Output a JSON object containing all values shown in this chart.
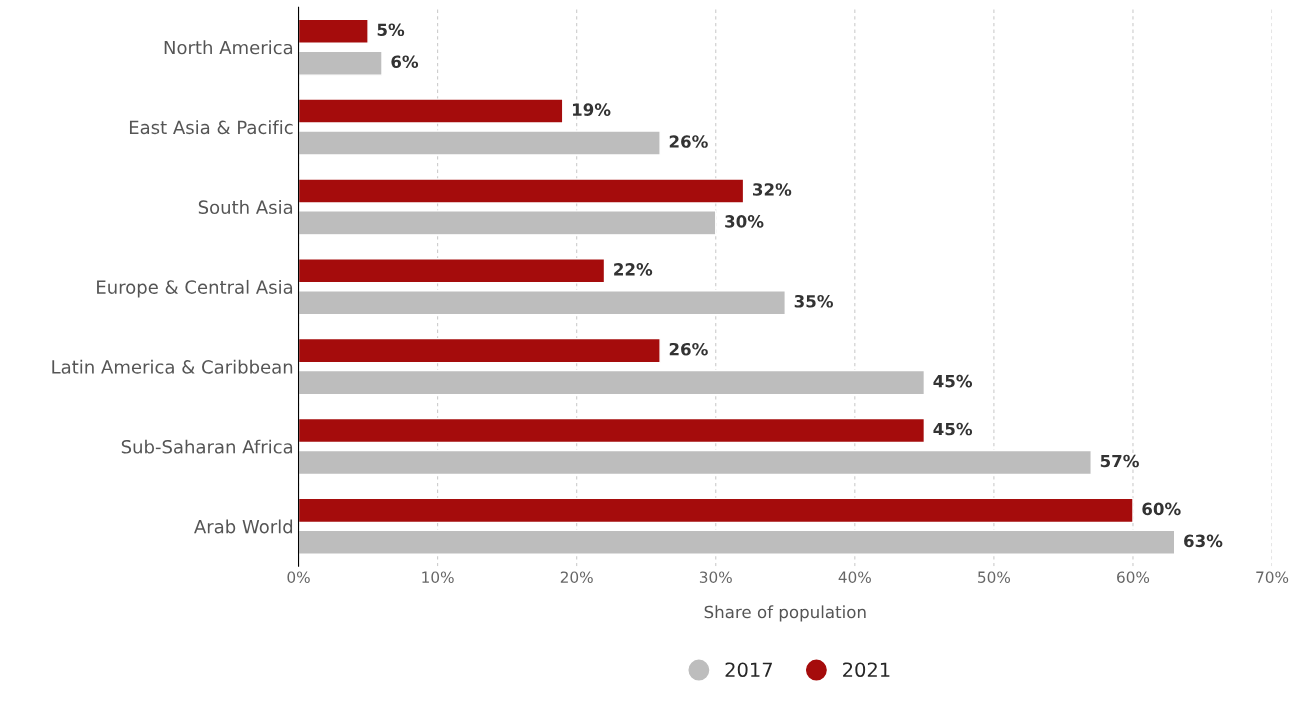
{
  "chart_data": {
    "type": "bar",
    "orientation": "horizontal",
    "xlabel": "Share of population",
    "categories": [
      "North America",
      "East Asia & Pacific",
      "South Asia",
      "Europe & Central Asia",
      "Latin America & Caribbean",
      "Sub-Saharan Africa",
      "Arab World"
    ],
    "series": [
      {
        "name": "2017",
        "color": "#bdbdbd",
        "values": [
          6,
          26,
          30,
          35,
          45,
          57,
          63
        ],
        "value_labels": [
          "6%",
          "26%",
          "30%",
          "35%",
          "45%",
          "57%",
          "63%"
        ]
      },
      {
        "name": "2021",
        "color": "#a50c0c",
        "values": [
          5,
          19,
          32,
          22,
          26,
          45,
          60
        ],
        "value_labels": [
          "5%",
          "19%",
          "32%",
          "22%",
          "26%",
          "45%",
          "60%"
        ]
      }
    ],
    "xlim": [
      0,
      70
    ],
    "xticks": [
      {
        "value": 0,
        "label": "0%"
      },
      {
        "value": 10,
        "label": "10%"
      },
      {
        "value": 20,
        "label": "20%"
      },
      {
        "value": 30,
        "label": "30%"
      },
      {
        "value": 40,
        "label": "40%"
      },
      {
        "value": 50,
        "label": "50%"
      },
      {
        "value": 60,
        "label": "60%"
      },
      {
        "value": 70,
        "label": "70%"
      }
    ],
    "grid": "x",
    "legend": "bottom"
  }
}
